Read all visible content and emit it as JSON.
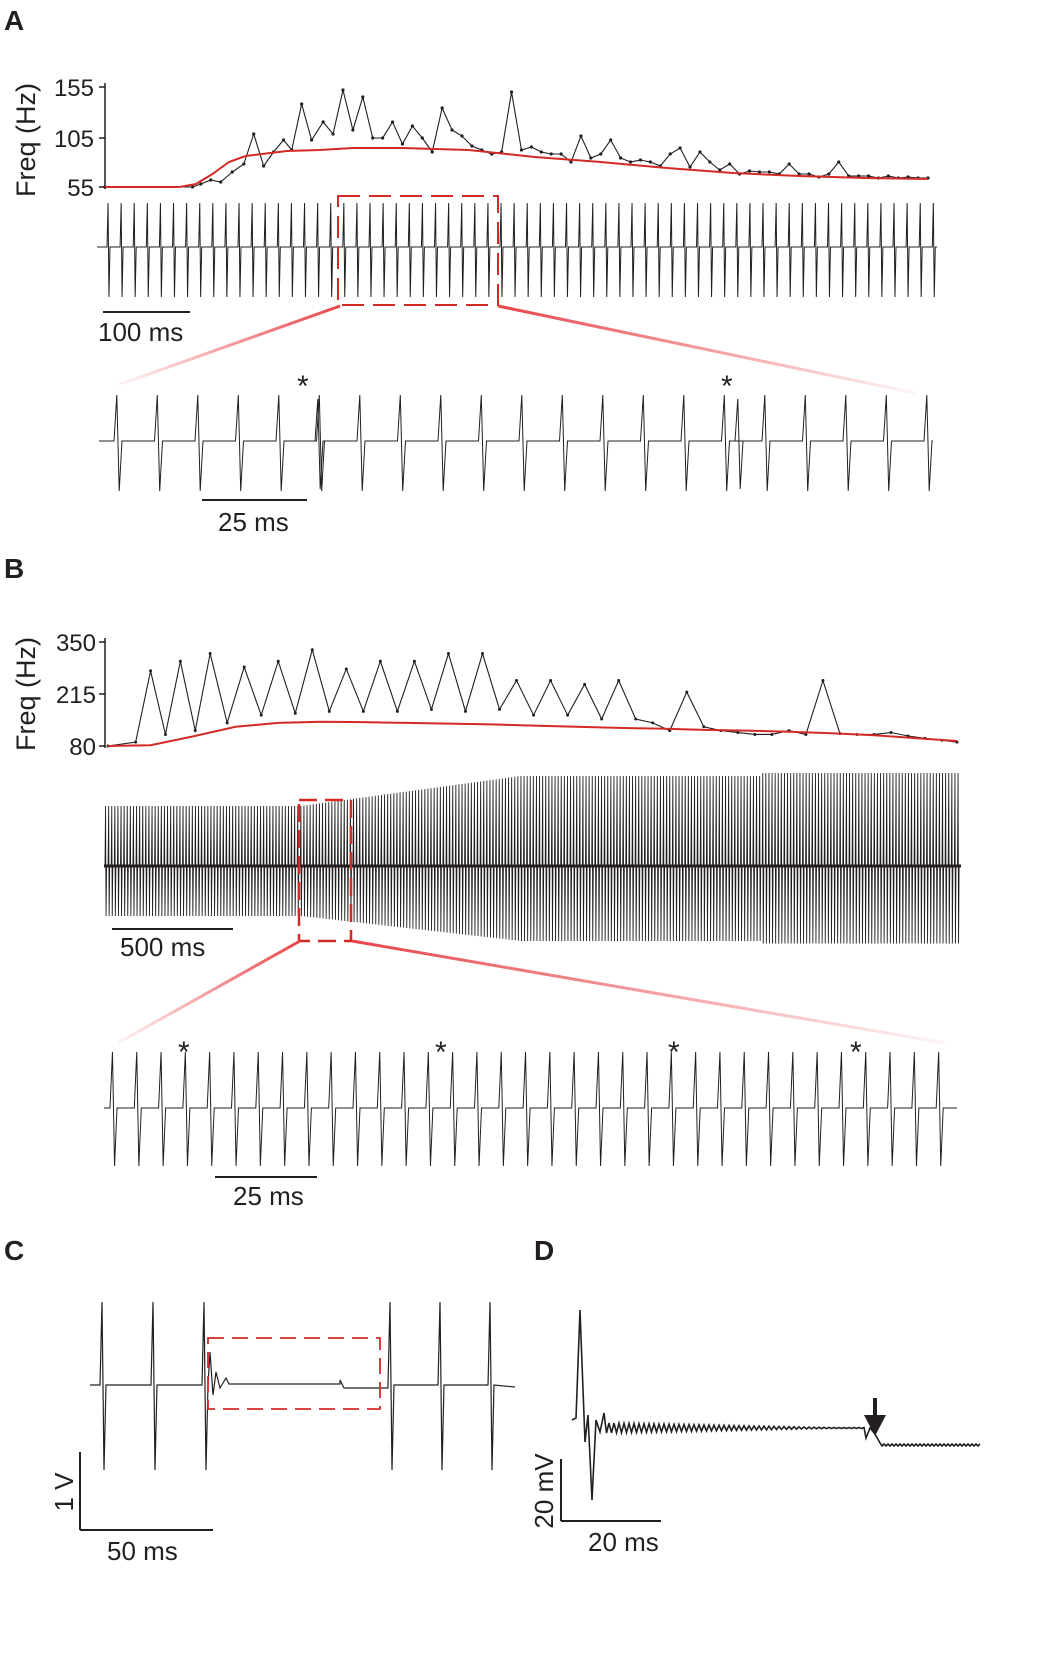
{
  "colors": {
    "trace": "#231f20",
    "smooth": "#d42a26",
    "box": "#d42a26",
    "zoom_fade": "#f07f80"
  },
  "panels": {
    "A": {
      "letter": "A"
    },
    "B": {
      "letter": "B"
    },
    "C": {
      "letter": "C"
    },
    "D": {
      "letter": "D"
    }
  },
  "chart_data": [
    {
      "panel": "A",
      "type": "line",
      "ylabel": "Freq (Hz)",
      "yticks": [
        "55",
        "105",
        "155"
      ],
      "ylim": [
        55,
        155
      ],
      "x_unit": "ms",
      "series": [
        {
          "x": [
            0,
            53,
            58,
            64,
            70,
            77,
            84,
            90,
            96,
            102,
            108,
            113,
            119,
            125,
            132,
            138,
            144,
            150,
            156,
            162,
            168,
            174,
            180,
            186,
            192,
            198,
            204,
            210,
            216,
            222,
            228,
            234,
            240,
            246,
            252,
            258,
            264,
            270,
            276,
            282,
            288,
            294,
            300,
            306,
            312,
            318,
            324,
            330,
            336,
            342,
            348,
            354,
            360,
            366,
            372,
            378,
            384,
            390,
            396,
            402,
            408,
            414,
            420,
            426,
            432,
            438,
            444,
            450,
            456,
            462,
            468,
            474,
            480,
            486,
            492,
            498
          ],
          "values": [
            55,
            55,
            58,
            62,
            60,
            70,
            78,
            108,
            76,
            90,
            102,
            92,
            138,
            102,
            120,
            108,
            152,
            112,
            145,
            104,
            104,
            120,
            98,
            116,
            104,
            90,
            134,
            112,
            106,
            96,
            92,
            88,
            90,
            150,
            92,
            95,
            90,
            88,
            88,
            80,
            106,
            84,
            88,
            102,
            84,
            80,
            82,
            80,
            76,
            88,
            94,
            75,
            90,
            80,
            72,
            78,
            68,
            71,
            70,
            70,
            68,
            78,
            68,
            68,
            65,
            68,
            80,
            66,
            66,
            66,
            64,
            66,
            64,
            65,
            64,
            64
          ]
        },
        {
          "x": [
            0,
            45,
            55,
            65,
            75,
            85,
            95,
            110,
            130,
            150,
            180,
            220,
            260,
            300,
            340,
            380,
            420,
            460,
            498
          ],
          "values": [
            55,
            55,
            58,
            68,
            80,
            86,
            88,
            91,
            92,
            94,
            94,
            92,
            85,
            80,
            74,
            69,
            66,
            64,
            63
          ]
        }
      ]
    },
    {
      "panel": "B",
      "type": "line",
      "ylabel": "Freq (Hz)",
      "yticks": [
        "80",
        "215",
        "350"
      ],
      "ylim": [
        80,
        350
      ],
      "x_unit": "ms",
      "series": [
        {
          "x": [
            0,
            130,
            200,
            270,
            340,
            410,
            480,
            560,
            640,
            720,
            800,
            880,
            960,
            1040,
            1120,
            1200,
            1280,
            1360,
            1440,
            1520,
            1600,
            1680,
            1760,
            1840,
            1920,
            2000,
            2080,
            2160,
            2240,
            2320,
            2400,
            2480,
            2560,
            2640,
            2720,
            2800,
            2880,
            2960,
            3040,
            3120,
            3200,
            3280,
            3360,
            3440,
            3520,
            3600,
            3680,
            3760,
            3840,
            3920,
            3990
          ],
          "values": [
            80,
            90,
            275,
            110,
            300,
            120,
            320,
            140,
            285,
            160,
            300,
            165,
            330,
            170,
            280,
            170,
            300,
            170,
            300,
            175,
            320,
            170,
            320,
            175,
            250,
            160,
            250,
            160,
            240,
            150,
            250,
            150,
            140,
            120,
            220,
            130,
            120,
            115,
            110,
            110,
            120,
            110,
            250,
            112,
            110,
            110,
            115,
            106,
            100,
            95,
            90
          ]
        },
        {
          "x": [
            0,
            200,
            400,
            600,
            800,
            1000,
            1200,
            1400,
            1600,
            1800,
            2000,
            2200,
            2400,
            2600,
            2800,
            3000,
            3200,
            3400,
            3600,
            3800,
            3990
          ],
          "values": [
            80,
            82,
            105,
            130,
            140,
            143,
            142,
            140,
            138,
            136,
            133,
            130,
            127,
            125,
            122,
            120,
            117,
            113,
            108,
            100,
            93
          ]
        }
      ]
    },
    {
      "panel": "C",
      "type": "line",
      "series": []
    },
    {
      "panel": "D",
      "type": "line",
      "series": []
    }
  ],
  "scalebars": {
    "A_main": "100 ms",
    "A_zoom": "25 ms",
    "B_main": "500 ms",
    "B_zoom": "25 ms",
    "C_x": "50 ms",
    "C_y": "1 V",
    "D_x": "20 ms",
    "D_y": "20 mV"
  },
  "markers": {
    "star": "*"
  }
}
